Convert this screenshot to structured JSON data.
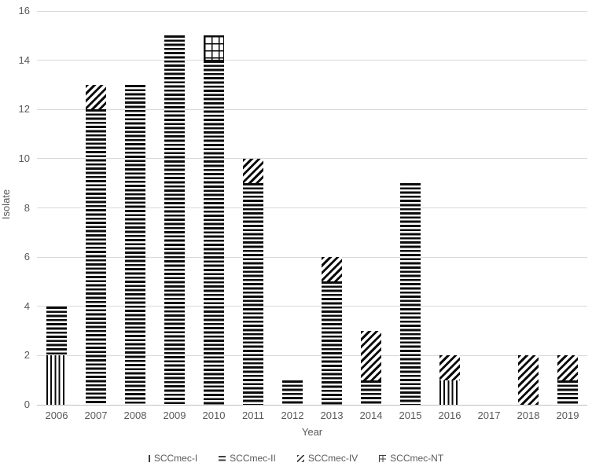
{
  "chart_data": {
    "type": "bar",
    "stacked": true,
    "title": "",
    "xlabel": "Year",
    "ylabel": "Isolate",
    "ylim": [
      0,
      16
    ],
    "yticks": [
      0,
      2,
      4,
      6,
      8,
      10,
      12,
      14,
      16
    ],
    "grid": true,
    "legend_position": "bottom",
    "categories": [
      "2006",
      "2007",
      "2008",
      "2009",
      "2010",
      "2011",
      "2012",
      "2013",
      "2014",
      "2015",
      "2016",
      "2017",
      "2018",
      "2019"
    ],
    "series": [
      {
        "name": "SCCmec-I",
        "pattern": "vertical-stripes",
        "values": [
          2,
          0,
          0,
          0,
          0,
          0,
          0,
          0,
          0,
          0,
          1,
          0,
          0,
          0
        ]
      },
      {
        "name": "SCCmec-II",
        "pattern": "horizontal-stripes",
        "values": [
          2,
          12,
          13,
          15,
          14,
          9,
          1,
          5,
          1,
          9,
          0,
          0,
          0,
          1
        ]
      },
      {
        "name": "SCCmec-IV",
        "pattern": "diagonal-stripes",
        "values": [
          0,
          1,
          0,
          0,
          0,
          1,
          0,
          1,
          2,
          0,
          1,
          0,
          2,
          1
        ]
      },
      {
        "name": "SCCmec-NT",
        "pattern": "grid",
        "values": [
          0,
          0,
          0,
          0,
          1,
          0,
          0,
          0,
          0,
          0,
          0,
          0,
          0,
          0
        ]
      }
    ],
    "totals": [
      4,
      13,
      13,
      15,
      15,
      10,
      1,
      6,
      3,
      9,
      2,
      0,
      2,
      2
    ],
    "colors": {
      "pattern_ink": "#000000",
      "background": "#ffffff",
      "axis_text": "#595959",
      "gridline": "#d9d9d9"
    }
  }
}
